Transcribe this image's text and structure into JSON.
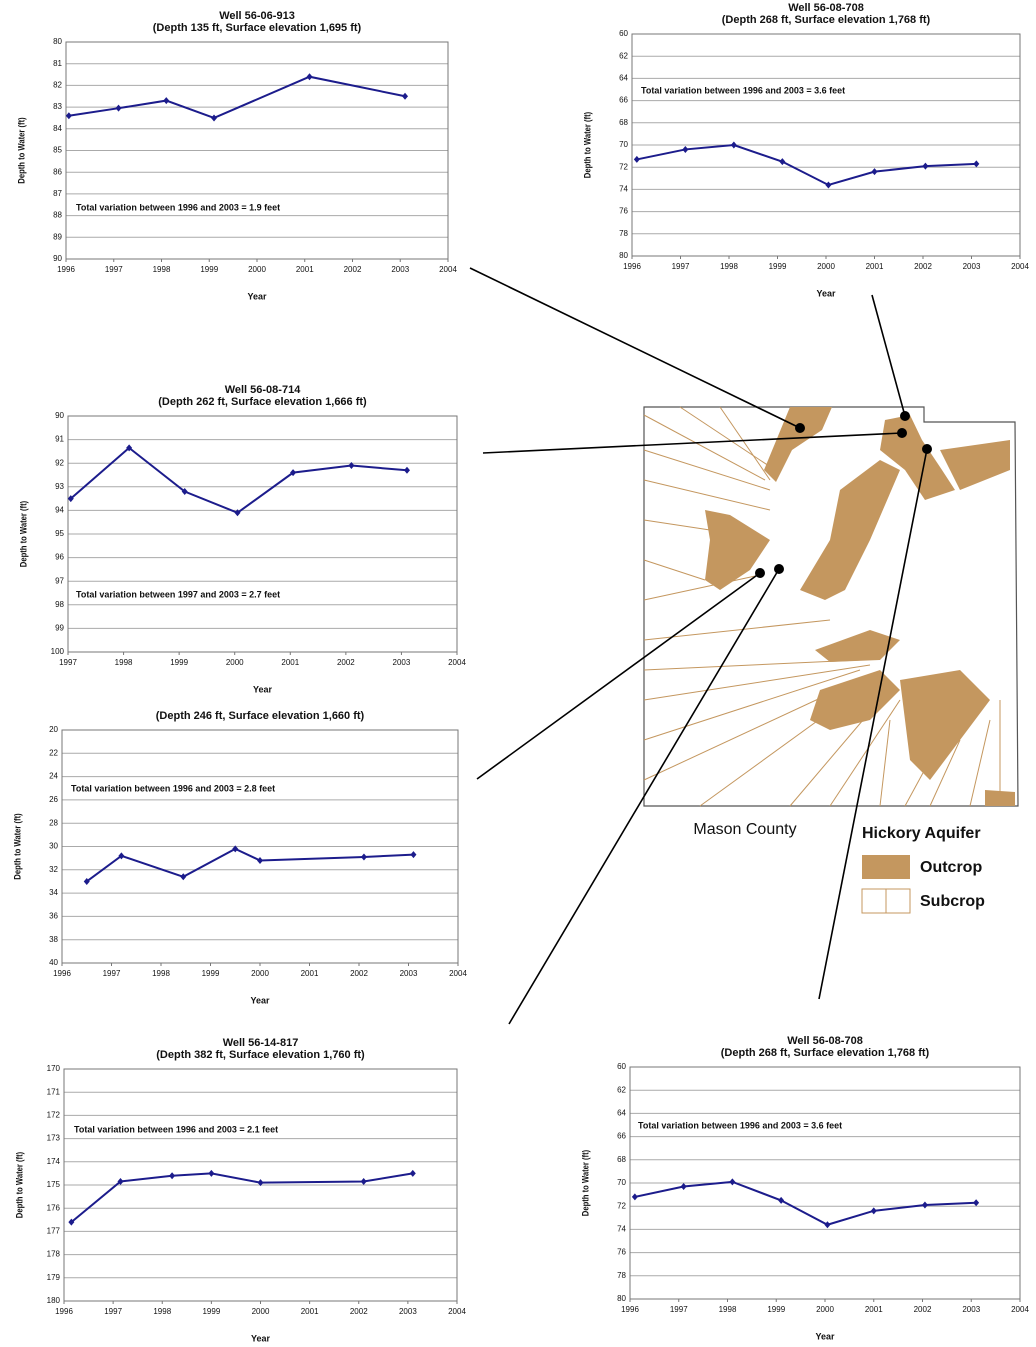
{
  "chart_data": [
    {
      "type": "line",
      "title": "Well 56-06-913",
      "subtitle": "(Depth 135 ft, Surface elevation  1,695 ft)",
      "x_label": "Year",
      "y_label": "Depth to Water (ft)",
      "annotation": "Total variation between 1996 and 2003 = 1.9 feet",
      "color": "#1c1c8c",
      "grid": true,
      "x": [
        1996.06,
        1997.1,
        1998.1,
        1999.1,
        2001.1,
        2003.1
      ],
      "values": [
        83.4,
        83.05,
        82.7,
        83.5,
        81.6,
        82.5
      ],
      "xlim": [
        1996,
        2004
      ],
      "xticks": [
        1996,
        1997,
        1998,
        1999,
        2000,
        2001,
        2002,
        2003,
        2004
      ],
      "ylim": [
        90,
        80
      ],
      "yticks": [
        80,
        81,
        82,
        83,
        84,
        85,
        86,
        87,
        88,
        89,
        90
      ]
    },
    {
      "type": "line",
      "title": "Well 56-08-708",
      "subtitle": "(Depth 268 ft, Surface elevation  1,768 ft)",
      "x_label": "Year",
      "y_label": "Depth to Water (ft)",
      "annotation": "Total variation between 1996 and 2003 = 3.6 feet",
      "color": "#1c1c8c",
      "grid": true,
      "x": [
        1996.1,
        1997.1,
        1998.1,
        1999.1,
        2000.05,
        2001.0,
        2002.05,
        2003.1
      ],
      "values": [
        71.3,
        70.4,
        70.0,
        71.5,
        73.6,
        72.4,
        71.9,
        71.7
      ],
      "xlim": [
        1996,
        2004
      ],
      "xticks": [
        1996,
        1997,
        1998,
        1999,
        2000,
        2001,
        2002,
        2003,
        2004
      ],
      "ylim": [
        80,
        60
      ],
      "yticks": [
        60,
        62,
        64,
        66,
        68,
        70,
        72,
        74,
        76,
        78,
        80
      ]
    },
    {
      "type": "line",
      "title": "Well 56-08-714",
      "subtitle": "(Depth 262 ft, Surface elevation  1,666 ft)",
      "x_label": "Year",
      "y_label": "Depth to Water (ft)",
      "annotation": "Total variation between 1997 and 2003 = 2.7 feet",
      "color": "#1c1c8c",
      "grid": true,
      "x": [
        1997.05,
        1998.1,
        1999.1,
        2000.05,
        2001.05,
        2002.1,
        2003.1
      ],
      "values": [
        93.5,
        91.35,
        93.2,
        94.1,
        92.4,
        92.1,
        92.3
      ],
      "xlim": [
        1997,
        2004
      ],
      "xticks": [
        1997,
        1998,
        1999,
        2000,
        2001,
        2002,
        2003,
        2004
      ],
      "ylim": [
        100,
        90
      ],
      "yticks": [
        90,
        91,
        92,
        93,
        94,
        95,
        96,
        97,
        98,
        99,
        100
      ]
    },
    {
      "type": "line",
      "subtitle": "(Depth 246 ft, Surface elevation  1,660 ft)",
      "x_label": "Year",
      "y_label": "Depth to Water (ft)",
      "annotation": "Total variation between 1996 and 2003 = 2.8 feet",
      "color": "#1c1c8c",
      "grid": true,
      "x": [
        1996.5,
        1997.2,
        1998.45,
        1999.5,
        2000.0,
        2002.1,
        2003.1
      ],
      "values": [
        33.0,
        30.8,
        32.6,
        30.2,
        31.2,
        30.9,
        30.7
      ],
      "xlim": [
        1996,
        2004
      ],
      "xticks": [
        1996,
        1997,
        1998,
        1999,
        2000,
        2001,
        2002,
        2003,
        2004
      ],
      "ylim": [
        40,
        20
      ],
      "yticks": [
        20,
        22,
        24,
        26,
        28,
        30,
        32,
        34,
        36,
        38,
        40
      ]
    },
    {
      "type": "line",
      "title": "Well 56-14-817",
      "subtitle": "(Depth 382 ft, Surface elevation  1,760 ft)",
      "x_label": "Year",
      "y_label": "Depth to Water (ft)",
      "annotation": "Total variation between 1996 and 2003 = 2.1 feet",
      "color": "#1c1c8c",
      "grid": true,
      "x": [
        1996.15,
        1997.15,
        1998.2,
        1999.0,
        2000.0,
        2002.1,
        2003.1
      ],
      "values": [
        176.6,
        174.85,
        174.6,
        174.5,
        174.9,
        174.85,
        174.5
      ],
      "xlim": [
        1996,
        2004
      ],
      "xticks": [
        1996,
        1997,
        1998,
        1999,
        2000,
        2001,
        2002,
        2003,
        2004
      ],
      "ylim": [
        180,
        170
      ],
      "yticks": [
        170,
        171,
        172,
        173,
        174,
        175,
        176,
        177,
        178,
        179,
        180
      ]
    },
    {
      "type": "line",
      "title": "Well 56-08-708",
      "subtitle": "(Depth 268 ft, Surface elevation  1,768 ft)",
      "x_label": "Year",
      "y_label": "Depth to Water (ft)",
      "annotation": "Total variation between 1996 and 2003 = 3.6 feet",
      "color": "#1c1c8c",
      "grid": true,
      "x": [
        1996.1,
        1997.1,
        1998.1,
        1999.1,
        2000.05,
        2001.0,
        2002.05,
        2003.1
      ],
      "values": [
        71.2,
        70.3,
        69.9,
        71.5,
        73.6,
        72.4,
        71.9,
        71.7
      ],
      "xlim": [
        1996,
        2004
      ],
      "xticks": [
        1996,
        1997,
        1998,
        1999,
        2000,
        2001,
        2002,
        2003,
        2004
      ],
      "ylim": [
        80,
        60
      ],
      "yticks": [
        60,
        62,
        64,
        66,
        68,
        70,
        72,
        74,
        76,
        78,
        80
      ]
    }
  ],
  "map": {
    "label": "Mason County",
    "legend_title": "Hickory Aquifer",
    "legend": [
      "Outcrop",
      "Subcrop"
    ]
  }
}
